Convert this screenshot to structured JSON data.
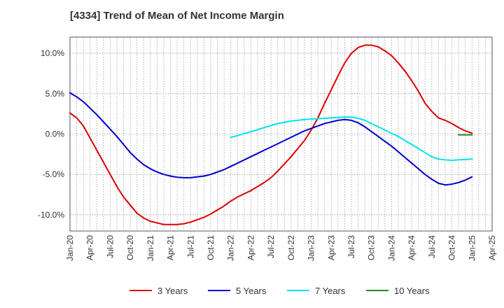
{
  "chart_data": {
    "type": "line",
    "title": "[4334]  Trend of Mean of Net Income Margin",
    "xlabel": "",
    "ylabel": "",
    "ylim": [
      -12,
      12
    ],
    "yticks": [
      -10,
      -5,
      0,
      5,
      10
    ],
    "ytick_labels": [
      "-10.0%",
      "-5.0%",
      "0.0%",
      "5.0%",
      "10.0%"
    ],
    "xlim": [
      "2020-01",
      "2025-04"
    ],
    "xtick_labels": [
      "Jan-20",
      "Apr-20",
      "Jul-20",
      "Oct-20",
      "Jan-21",
      "Apr-21",
      "Jul-21",
      "Oct-21",
      "Jan-22",
      "Apr-22",
      "Jul-22",
      "Oct-22",
      "Jan-23",
      "Apr-23",
      "Jul-23",
      "Oct-23",
      "Jan-24",
      "Apr-24",
      "Jul-24",
      "Oct-24",
      "Jan-25",
      "Apr-25"
    ],
    "grid": true,
    "legend_position": "bottom",
    "series": [
      {
        "name": "3 Years",
        "color": "#dd0000",
        "points": [
          [
            "2020-01",
            2.6
          ],
          [
            "2020-02",
            2.0
          ],
          [
            "2020-03",
            1.0
          ],
          [
            "2020-04",
            -0.5
          ],
          [
            "2020-05",
            -2.0
          ],
          [
            "2020-06",
            -3.5
          ],
          [
            "2020-07",
            -5.0
          ],
          [
            "2020-08",
            -6.5
          ],
          [
            "2020-09",
            -7.8
          ],
          [
            "2020-10",
            -8.8
          ],
          [
            "2020-11",
            -9.8
          ],
          [
            "2020-12",
            -10.4
          ],
          [
            "2021-01",
            -10.8
          ],
          [
            "2021-02",
            -11.0
          ],
          [
            "2021-03",
            -11.2
          ],
          [
            "2021-04",
            -11.2
          ],
          [
            "2021-05",
            -11.2
          ],
          [
            "2021-06",
            -11.1
          ],
          [
            "2021-07",
            -10.9
          ],
          [
            "2021-08",
            -10.6
          ],
          [
            "2021-09",
            -10.3
          ],
          [
            "2021-10",
            -9.9
          ],
          [
            "2021-11",
            -9.4
          ],
          [
            "2021-12",
            -8.9
          ],
          [
            "2022-01",
            -8.3
          ],
          [
            "2022-02",
            -7.8
          ],
          [
            "2022-03",
            -7.4
          ],
          [
            "2022-04",
            -7.0
          ],
          [
            "2022-05",
            -6.5
          ],
          [
            "2022-06",
            -6.0
          ],
          [
            "2022-07",
            -5.4
          ],
          [
            "2022-08",
            -4.6
          ],
          [
            "2022-09",
            -3.7
          ],
          [
            "2022-10",
            -2.8
          ],
          [
            "2022-11",
            -1.8
          ],
          [
            "2022-12",
            -0.8
          ],
          [
            "2023-01",
            0.5
          ],
          [
            "2023-02",
            2.0
          ],
          [
            "2023-03",
            3.8
          ],
          [
            "2023-04",
            5.5
          ],
          [
            "2023-05",
            7.2
          ],
          [
            "2023-06",
            8.8
          ],
          [
            "2023-07",
            10.0
          ],
          [
            "2023-08",
            10.7
          ],
          [
            "2023-09",
            11.0
          ],
          [
            "2023-10",
            11.0
          ],
          [
            "2023-11",
            10.8
          ],
          [
            "2023-12",
            10.3
          ],
          [
            "2024-01",
            9.7
          ],
          [
            "2024-02",
            8.8
          ],
          [
            "2024-03",
            7.8
          ],
          [
            "2024-04",
            6.6
          ],
          [
            "2024-05",
            5.3
          ],
          [
            "2024-06",
            3.8
          ],
          [
            "2024-07",
            2.8
          ],
          [
            "2024-08",
            2.0
          ],
          [
            "2024-09",
            1.7
          ],
          [
            "2024-10",
            1.3
          ],
          [
            "2024-11",
            0.8
          ],
          [
            "2024-12",
            0.4
          ],
          [
            "2025-01",
            0.1
          ]
        ]
      },
      {
        "name": "5 Years",
        "color": "#0000cc",
        "points": [
          [
            "2020-01",
            5.1
          ],
          [
            "2020-02",
            4.6
          ],
          [
            "2020-03",
            4.0
          ],
          [
            "2020-04",
            3.2
          ],
          [
            "2020-05",
            2.4
          ],
          [
            "2020-06",
            1.5
          ],
          [
            "2020-07",
            0.6
          ],
          [
            "2020-08",
            -0.3
          ],
          [
            "2020-09",
            -1.3
          ],
          [
            "2020-10",
            -2.3
          ],
          [
            "2020-11",
            -3.1
          ],
          [
            "2020-12",
            -3.8
          ],
          [
            "2021-01",
            -4.3
          ],
          [
            "2021-02",
            -4.7
          ],
          [
            "2021-03",
            -5.0
          ],
          [
            "2021-04",
            -5.2
          ],
          [
            "2021-05",
            -5.35
          ],
          [
            "2021-06",
            -5.4
          ],
          [
            "2021-07",
            -5.4
          ],
          [
            "2021-08",
            -5.3
          ],
          [
            "2021-09",
            -5.2
          ],
          [
            "2021-10",
            -5.0
          ],
          [
            "2021-11",
            -4.7
          ],
          [
            "2021-12",
            -4.4
          ],
          [
            "2022-01",
            -4.0
          ],
          [
            "2022-02",
            -3.6
          ],
          [
            "2022-03",
            -3.2
          ],
          [
            "2022-04",
            -2.8
          ],
          [
            "2022-05",
            -2.4
          ],
          [
            "2022-06",
            -2.0
          ],
          [
            "2022-07",
            -1.6
          ],
          [
            "2022-08",
            -1.2
          ],
          [
            "2022-09",
            -0.8
          ],
          [
            "2022-10",
            -0.4
          ],
          [
            "2022-11",
            0.0
          ],
          [
            "2022-12",
            0.4
          ],
          [
            "2023-01",
            0.7
          ],
          [
            "2023-02",
            1.0
          ],
          [
            "2023-03",
            1.3
          ],
          [
            "2023-04",
            1.5
          ],
          [
            "2023-05",
            1.7
          ],
          [
            "2023-06",
            1.8
          ],
          [
            "2023-07",
            1.7
          ],
          [
            "2023-08",
            1.4
          ],
          [
            "2023-09",
            0.9
          ],
          [
            "2023-10",
            0.3
          ],
          [
            "2023-11",
            -0.3
          ],
          [
            "2023-12",
            -0.9
          ],
          [
            "2024-01",
            -1.5
          ],
          [
            "2024-02",
            -2.2
          ],
          [
            "2024-03",
            -2.9
          ],
          [
            "2024-04",
            -3.6
          ],
          [
            "2024-05",
            -4.3
          ],
          [
            "2024-06",
            -5.0
          ],
          [
            "2024-07",
            -5.6
          ],
          [
            "2024-08",
            -6.1
          ],
          [
            "2024-09",
            -6.3
          ],
          [
            "2024-10",
            -6.2
          ],
          [
            "2024-11",
            -6.0
          ],
          [
            "2024-12",
            -5.7
          ],
          [
            "2025-01",
            -5.3
          ]
        ]
      },
      {
        "name": "7 Years",
        "color": "#00e5ee",
        "points": [
          [
            "2022-01",
            -0.4
          ],
          [
            "2022-02",
            -0.2
          ],
          [
            "2022-03",
            0.05
          ],
          [
            "2022-04",
            0.3
          ],
          [
            "2022-05",
            0.55
          ],
          [
            "2022-06",
            0.8
          ],
          [
            "2022-07",
            1.05
          ],
          [
            "2022-08",
            1.3
          ],
          [
            "2022-09",
            1.45
          ],
          [
            "2022-10",
            1.6
          ],
          [
            "2022-11",
            1.7
          ],
          [
            "2022-12",
            1.8
          ],
          [
            "2023-01",
            1.85
          ],
          [
            "2023-02",
            1.9
          ],
          [
            "2023-03",
            1.95
          ],
          [
            "2023-04",
            2.0
          ],
          [
            "2023-05",
            2.05
          ],
          [
            "2023-06",
            2.1
          ],
          [
            "2023-07",
            2.1
          ],
          [
            "2023-08",
            1.95
          ],
          [
            "2023-09",
            1.7
          ],
          [
            "2023-10",
            1.3
          ],
          [
            "2023-11",
            0.9
          ],
          [
            "2023-12",
            0.5
          ],
          [
            "2024-01",
            0.1
          ],
          [
            "2024-02",
            -0.3
          ],
          [
            "2024-03",
            -0.8
          ],
          [
            "2024-04",
            -1.3
          ],
          [
            "2024-05",
            -1.8
          ],
          [
            "2024-06",
            -2.3
          ],
          [
            "2024-07",
            -2.8
          ],
          [
            "2024-08",
            -3.1
          ],
          [
            "2024-09",
            -3.2
          ],
          [
            "2024-10",
            -3.25
          ],
          [
            "2024-11",
            -3.2
          ],
          [
            "2024-12",
            -3.15
          ],
          [
            "2025-01",
            -3.1
          ]
        ]
      },
      {
        "name": "10 Years",
        "color": "#228b22",
        "points": [
          [
            "2024-11",
            -0.1
          ],
          [
            "2024-12",
            -0.1
          ],
          [
            "2025-01",
            -0.1
          ]
        ]
      }
    ]
  }
}
